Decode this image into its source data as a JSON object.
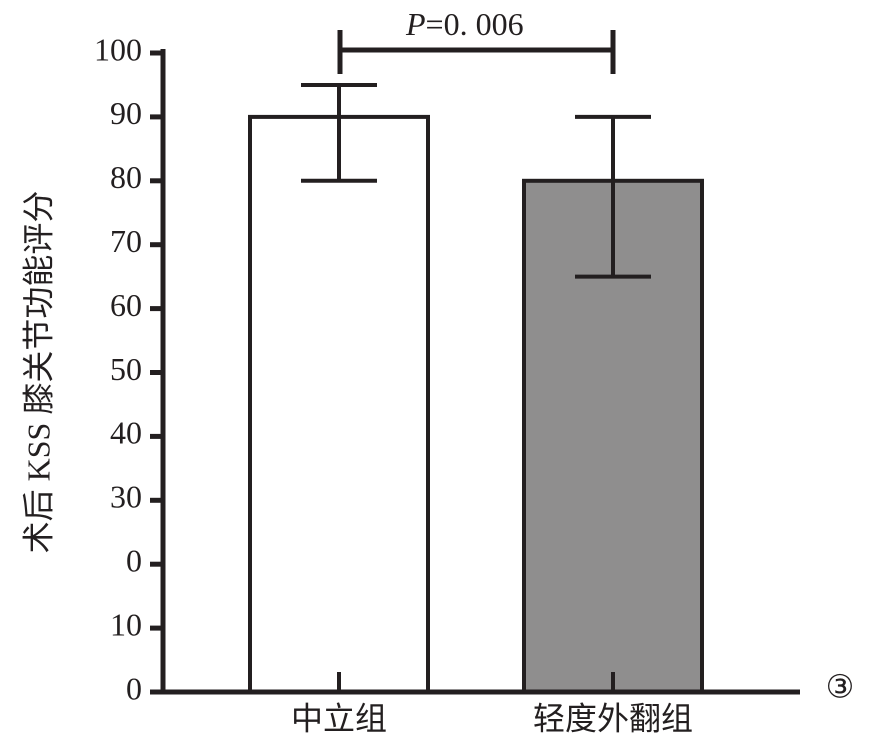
{
  "chart_data": {
    "type": "bar",
    "y_label": "术后 KSS 膝关节功能评分",
    "categories": [
      "中立组",
      "轻度外翻组"
    ],
    "values": [
      90,
      80
    ],
    "colors": [
      "#ffffff",
      "#8f8e8e"
    ],
    "error_high": [
      95,
      90
    ],
    "error_low": [
      80,
      65
    ],
    "ylim": [
      0,
      100
    ],
    "yticks": [
      0,
      10,
      {
        "value": 20,
        "label": "0"
      },
      30,
      40,
      50,
      60,
      70,
      80,
      90,
      100
    ],
    "annotation": {
      "italic": "P",
      "text": "=0. 006"
    },
    "panel_label": "③"
  }
}
